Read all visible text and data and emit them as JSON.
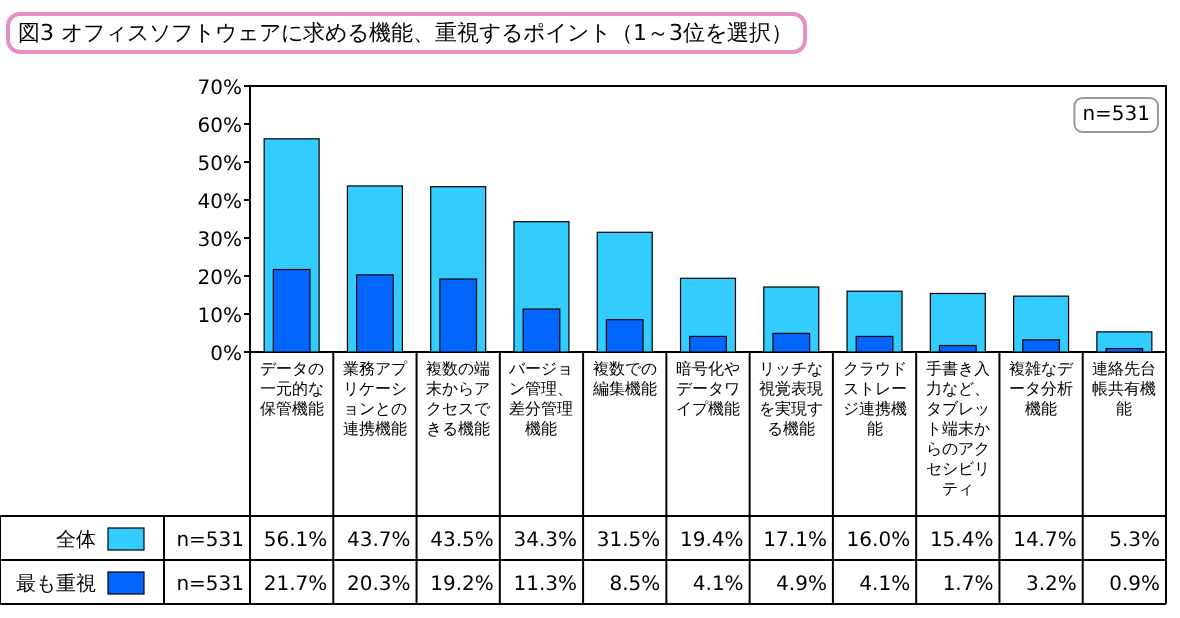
{
  "chart_data": {
    "type": "bar",
    "title": "図3 オフィスソフトウェアに求める機能、重視するポイント（1～3位を選択）",
    "categories": [
      "データの一元的な保管機能",
      "業務アプリケーションとの連携機能",
      "複数の端末からアクセスできる機能",
      "バージョン管理、差分管理機能",
      "複数での編集機能",
      "暗号化やデータワイプ機能",
      "リッチな視覚表現を実現する機能",
      "クラウドストレージ連携機能",
      "手書き入力など、タブレット端末からのアクセシビリティ",
      "複雑なデータ分析機能",
      "連絡先台帳共有機能"
    ],
    "series": [
      {
        "name": "全体",
        "color": "#33ccff",
        "values": [
          56.1,
          43.7,
          43.5,
          34.3,
          31.5,
          19.4,
          17.1,
          16.0,
          15.4,
          14.7,
          5.3
        ],
        "value_labels": [
          "56.1%",
          "43.7%",
          "43.5%",
          "34.3%",
          "31.5%",
          "19.4%",
          "17.1%",
          "16.0%",
          "15.4%",
          "14.7%",
          "5.3%"
        ]
      },
      {
        "name": "最も重視",
        "color": "#0066ff",
        "values": [
          21.7,
          20.3,
          19.2,
          11.3,
          8.5,
          4.1,
          4.9,
          4.1,
          1.7,
          3.2,
          0.9
        ],
        "value_labels": [
          "21.7%",
          "20.3%",
          "19.2%",
          "11.3%",
          "8.5%",
          "4.1%",
          "4.9%",
          "4.1%",
          "1.7%",
          "3.2%",
          "0.9%"
        ]
      }
    ],
    "ylim": [
      0,
      70
    ],
    "yticks": [
      {
        "value": 0,
        "label": "0%"
      },
      {
        "value": 10,
        "label": "10%"
      },
      {
        "value": 20,
        "label": "20%"
      },
      {
        "value": 30,
        "label": "30%"
      },
      {
        "value": 40,
        "label": "40%"
      },
      {
        "value": 50,
        "label": "50%"
      },
      {
        "value": 60,
        "label": "60%"
      },
      {
        "value": 70,
        "label": "70%"
      }
    ],
    "legend": "bottom left",
    "annotations": [
      "n=531",
      "n=531",
      "n=531"
    ]
  }
}
